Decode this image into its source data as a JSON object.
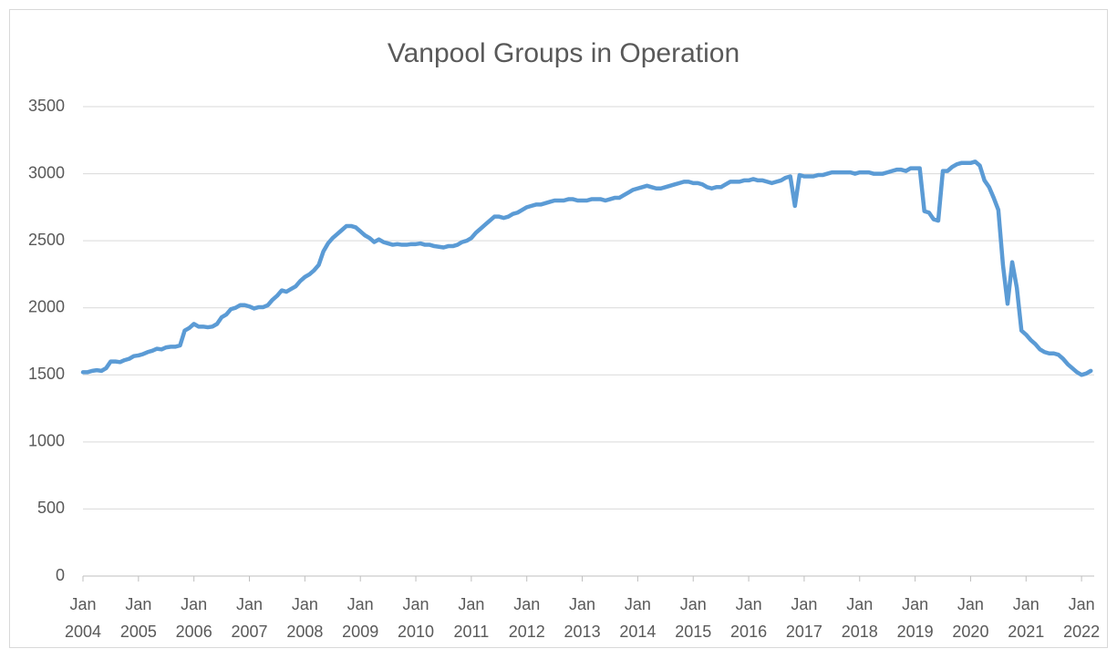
{
  "chart_data": {
    "type": "line",
    "title": "Vanpool Groups in Operation",
    "categories": [
      "Jan 2004",
      null,
      null,
      null,
      null,
      null,
      null,
      null,
      null,
      null,
      null,
      null,
      "Jan 2005",
      null,
      null,
      null,
      null,
      null,
      null,
      null,
      null,
      null,
      null,
      null,
      "Jan 2006",
      null,
      null,
      null,
      null,
      null,
      null,
      null,
      null,
      null,
      null,
      null,
      "Jan 2007",
      null,
      null,
      null,
      null,
      null,
      null,
      null,
      null,
      null,
      null,
      null,
      "Jan 2008",
      null,
      null,
      null,
      null,
      null,
      null,
      null,
      null,
      null,
      null,
      null,
      "Jan 2009",
      null,
      null,
      null,
      null,
      null,
      null,
      null,
      null,
      null,
      null,
      null,
      "Jan 2010",
      null,
      null,
      null,
      null,
      null,
      null,
      null,
      null,
      null,
      null,
      null,
      "Jan 2011",
      null,
      null,
      null,
      null,
      null,
      null,
      null,
      null,
      null,
      null,
      null,
      "Jan 2012",
      null,
      null,
      null,
      null,
      null,
      null,
      null,
      null,
      null,
      null,
      null,
      "Jan 2013",
      null,
      null,
      null,
      null,
      null,
      null,
      null,
      null,
      null,
      null,
      null,
      "Jan 2014",
      null,
      null,
      null,
      null,
      null,
      null,
      null,
      null,
      null,
      null,
      null,
      "Jan 2015",
      null,
      null,
      null,
      null,
      null,
      null,
      null,
      null,
      null,
      null,
      null,
      "Jan 2016",
      null,
      null,
      null,
      null,
      null,
      null,
      null,
      null,
      null,
      null,
      null,
      "Jan 2017",
      null,
      null,
      null,
      null,
      null,
      null,
      null,
      null,
      null,
      null,
      null,
      "Jan 2018",
      null,
      null,
      null,
      null,
      null,
      null,
      null,
      null,
      null,
      null,
      null,
      "Jan 2019",
      null,
      null,
      null,
      null,
      null,
      null,
      null,
      null,
      null,
      null,
      null,
      "Jan 2020",
      null,
      null,
      null,
      null,
      null,
      null,
      null,
      null,
      null,
      null,
      null,
      "Jan 2021",
      null,
      null,
      null,
      null,
      null,
      null,
      null,
      null,
      null,
      null,
      null,
      "Jan 2022",
      null,
      null
    ],
    "values": [
      1520,
      1520,
      1530,
      1535,
      1530,
      1550,
      1600,
      1600,
      1595,
      1610,
      1620,
      1640,
      1645,
      1655,
      1670,
      1680,
      1695,
      1690,
      1705,
      1710,
      1710,
      1720,
      1830,
      1850,
      1880,
      1860,
      1860,
      1855,
      1860,
      1880,
      1930,
      1950,
      1990,
      2000,
      2020,
      2020,
      2010,
      1995,
      2005,
      2005,
      2020,
      2060,
      2090,
      2130,
      2120,
      2140,
      2160,
      2200,
      2230,
      2250,
      2280,
      2320,
      2420,
      2480,
      2520,
      2550,
      2580,
      2610,
      2610,
      2600,
      2570,
      2540,
      2520,
      2490,
      2510,
      2490,
      2480,
      2470,
      2475,
      2470,
      2470,
      2475,
      2475,
      2480,
      2470,
      2470,
      2460,
      2455,
      2450,
      2460,
      2460,
      2470,
      2490,
      2500,
      2520,
      2560,
      2590,
      2620,
      2650,
      2680,
      2680,
      2670,
      2680,
      2700,
      2710,
      2730,
      2750,
      2760,
      2770,
      2770,
      2780,
      2790,
      2800,
      2800,
      2800,
      2810,
      2810,
      2800,
      2800,
      2800,
      2810,
      2810,
      2810,
      2800,
      2810,
      2820,
      2820,
      2840,
      2860,
      2880,
      2890,
      2900,
      2910,
      2900,
      2890,
      2890,
      2900,
      2910,
      2920,
      2930,
      2940,
      2940,
      2930,
      2930,
      2920,
      2900,
      2890,
      2900,
      2900,
      2920,
      2940,
      2940,
      2940,
      2950,
      2950,
      2960,
      2950,
      2950,
      2940,
      2930,
      2940,
      2950,
      2970,
      2980,
      2760,
      2990,
      2980,
      2980,
      2980,
      2990,
      2990,
      3000,
      3010,
      3010,
      3010,
      3010,
      3010,
      3000,
      3010,
      3010,
      3010,
      3000,
      3000,
      3000,
      3010,
      3020,
      3030,
      3030,
      3020,
      3040,
      3040,
      3040,
      2720,
      2710,
      2660,
      2650,
      3020,
      3020,
      3050,
      3070,
      3080,
      3080,
      3080,
      3090,
      3060,
      2950,
      2900,
      2820,
      2730,
      2320,
      2030,
      2340,
      2150,
      1830,
      1800,
      1760,
      1730,
      1690,
      1670,
      1660,
      1660,
      1650,
      1620,
      1580,
      1550,
      1520,
      1500,
      1510,
      1530
    ],
    "color": "#5b9bd5",
    "ylim": [
      0,
      3500
    ],
    "yticks": [
      0,
      500,
      1000,
      1500,
      2000,
      2500,
      3000,
      3500
    ],
    "grid": true
  }
}
